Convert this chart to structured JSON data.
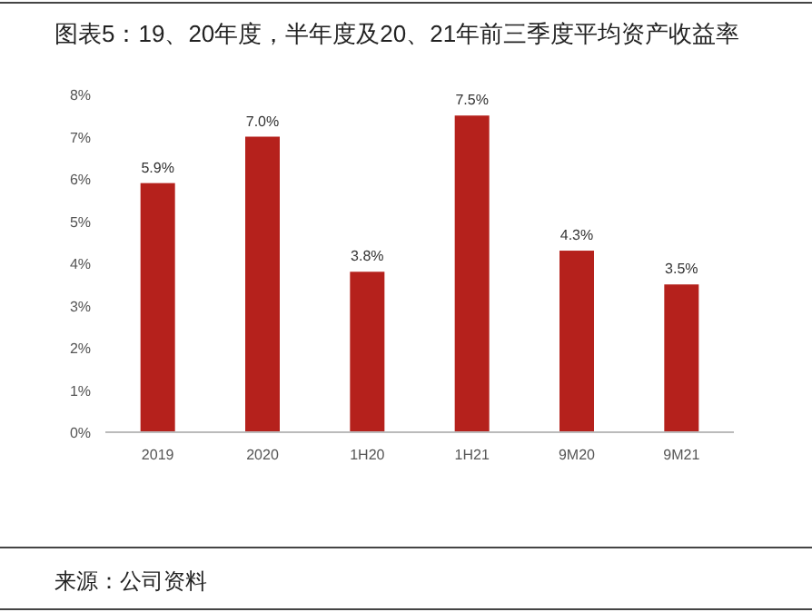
{
  "chart_data": {
    "type": "bar",
    "title": "图表5：19、20年度，半年度及20、21年前三季度平均资产收益率",
    "categories": [
      "2019",
      "2020",
      "1H20",
      "1H21",
      "9M20",
      "9M21"
    ],
    "values": [
      5.9,
      7.0,
      3.8,
      7.5,
      4.3,
      3.5
    ],
    "value_labels": [
      "5.9%",
      "7.0%",
      "3.8%",
      "7.5%",
      "4.3%",
      "3.5%"
    ],
    "color": "#b5211c",
    "ylim": [
      0,
      8
    ],
    "yticks": [
      {
        "value": 0,
        "label": "0%"
      },
      {
        "value": 1,
        "label": "1%"
      },
      {
        "value": 2,
        "label": "2%"
      },
      {
        "value": 3,
        "label": "3%"
      },
      {
        "value": 4,
        "label": "4%"
      },
      {
        "value": 5,
        "label": "5%"
      },
      {
        "value": 6,
        "label": "6%"
      },
      {
        "value": 7,
        "label": "7%"
      },
      {
        "value": 8,
        "label": "8%"
      }
    ],
    "annotations": [
      "来源：公司资料"
    ]
  }
}
